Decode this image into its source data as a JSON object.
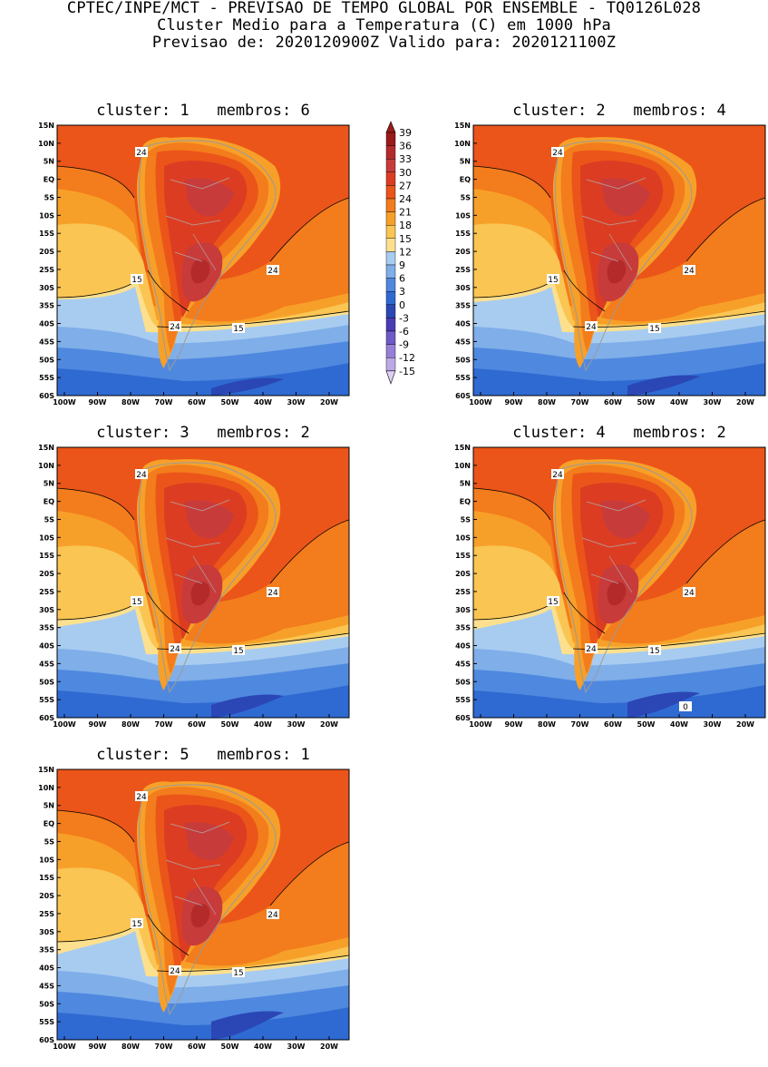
{
  "header": {
    "line1": "CPTEC/INPE/MCT - PREVISAO DE TEMPO GLOBAL POR ENSEMBLE - TQ0126L028",
    "line2": "Cluster Medio para a Temperatura (C) em 1000 hPa",
    "line3": "Previsao de: 2020120900Z   Valido para: 2020121100Z"
  },
  "colorbar": {
    "levels": [
      "39",
      "36",
      "33",
      "30",
      "27",
      "24",
      "21",
      "18",
      "15",
      "12",
      "9",
      "6",
      "3",
      "0",
      "-3",
      "-6",
      "-9",
      "-12",
      "-15"
    ],
    "colors": [
      "#9b1a1a",
      "#b42a2a",
      "#c83b3b",
      "#dc3d22",
      "#eb5519",
      "#f37c1c",
      "#f7a029",
      "#fac552",
      "#fde08e",
      "#a8ccf0",
      "#7faee9",
      "#4f88df",
      "#2f6ad2",
      "#2a47b5",
      "#4a3cb5",
      "#6f5bc8",
      "#9580d8",
      "#bba8e6",
      "#ddd0f2"
    ]
  },
  "axes": {
    "lat_labels": [
      "15N",
      "10N",
      "5N",
      "EQ",
      "5S",
      "10S",
      "15S",
      "20S",
      "25S",
      "30S",
      "35S",
      "40S",
      "45S",
      "50S",
      "55S",
      "60S"
    ],
    "lon_labels": [
      "100W",
      "90W",
      "80W",
      "70W",
      "60W",
      "50W",
      "40W",
      "30W",
      "20W"
    ]
  },
  "panels": [
    {
      "title": "cluster: 1   membros: 6",
      "labels": {
        "c24a": "24",
        "c24b": "24",
        "c24c": "24",
        "c15a": "15",
        "c15b": "15"
      }
    },
    {
      "title": "cluster: 2   membros: 4",
      "labels": {
        "c24a": "24",
        "c24b": "24",
        "c24c": "24",
        "c15a": "15",
        "c15b": "15"
      }
    },
    {
      "title": "cluster: 3   membros: 2",
      "labels": {
        "c24a": "24",
        "c24b": "24",
        "c24c": "24",
        "c15a": "15",
        "c15b": "15"
      }
    },
    {
      "title": "cluster: 4   membros: 2",
      "labels": {
        "c24a": "24",
        "c24b": "24",
        "c24c": "24",
        "c15a": "15",
        "c15b": "15",
        "c0": "0"
      }
    },
    {
      "title": "cluster: 5   membros: 1",
      "labels": {
        "c24a": "24",
        "c24b": "24",
        "c24c": "24",
        "c15a": "15",
        "c15b": "15"
      }
    }
  ]
}
